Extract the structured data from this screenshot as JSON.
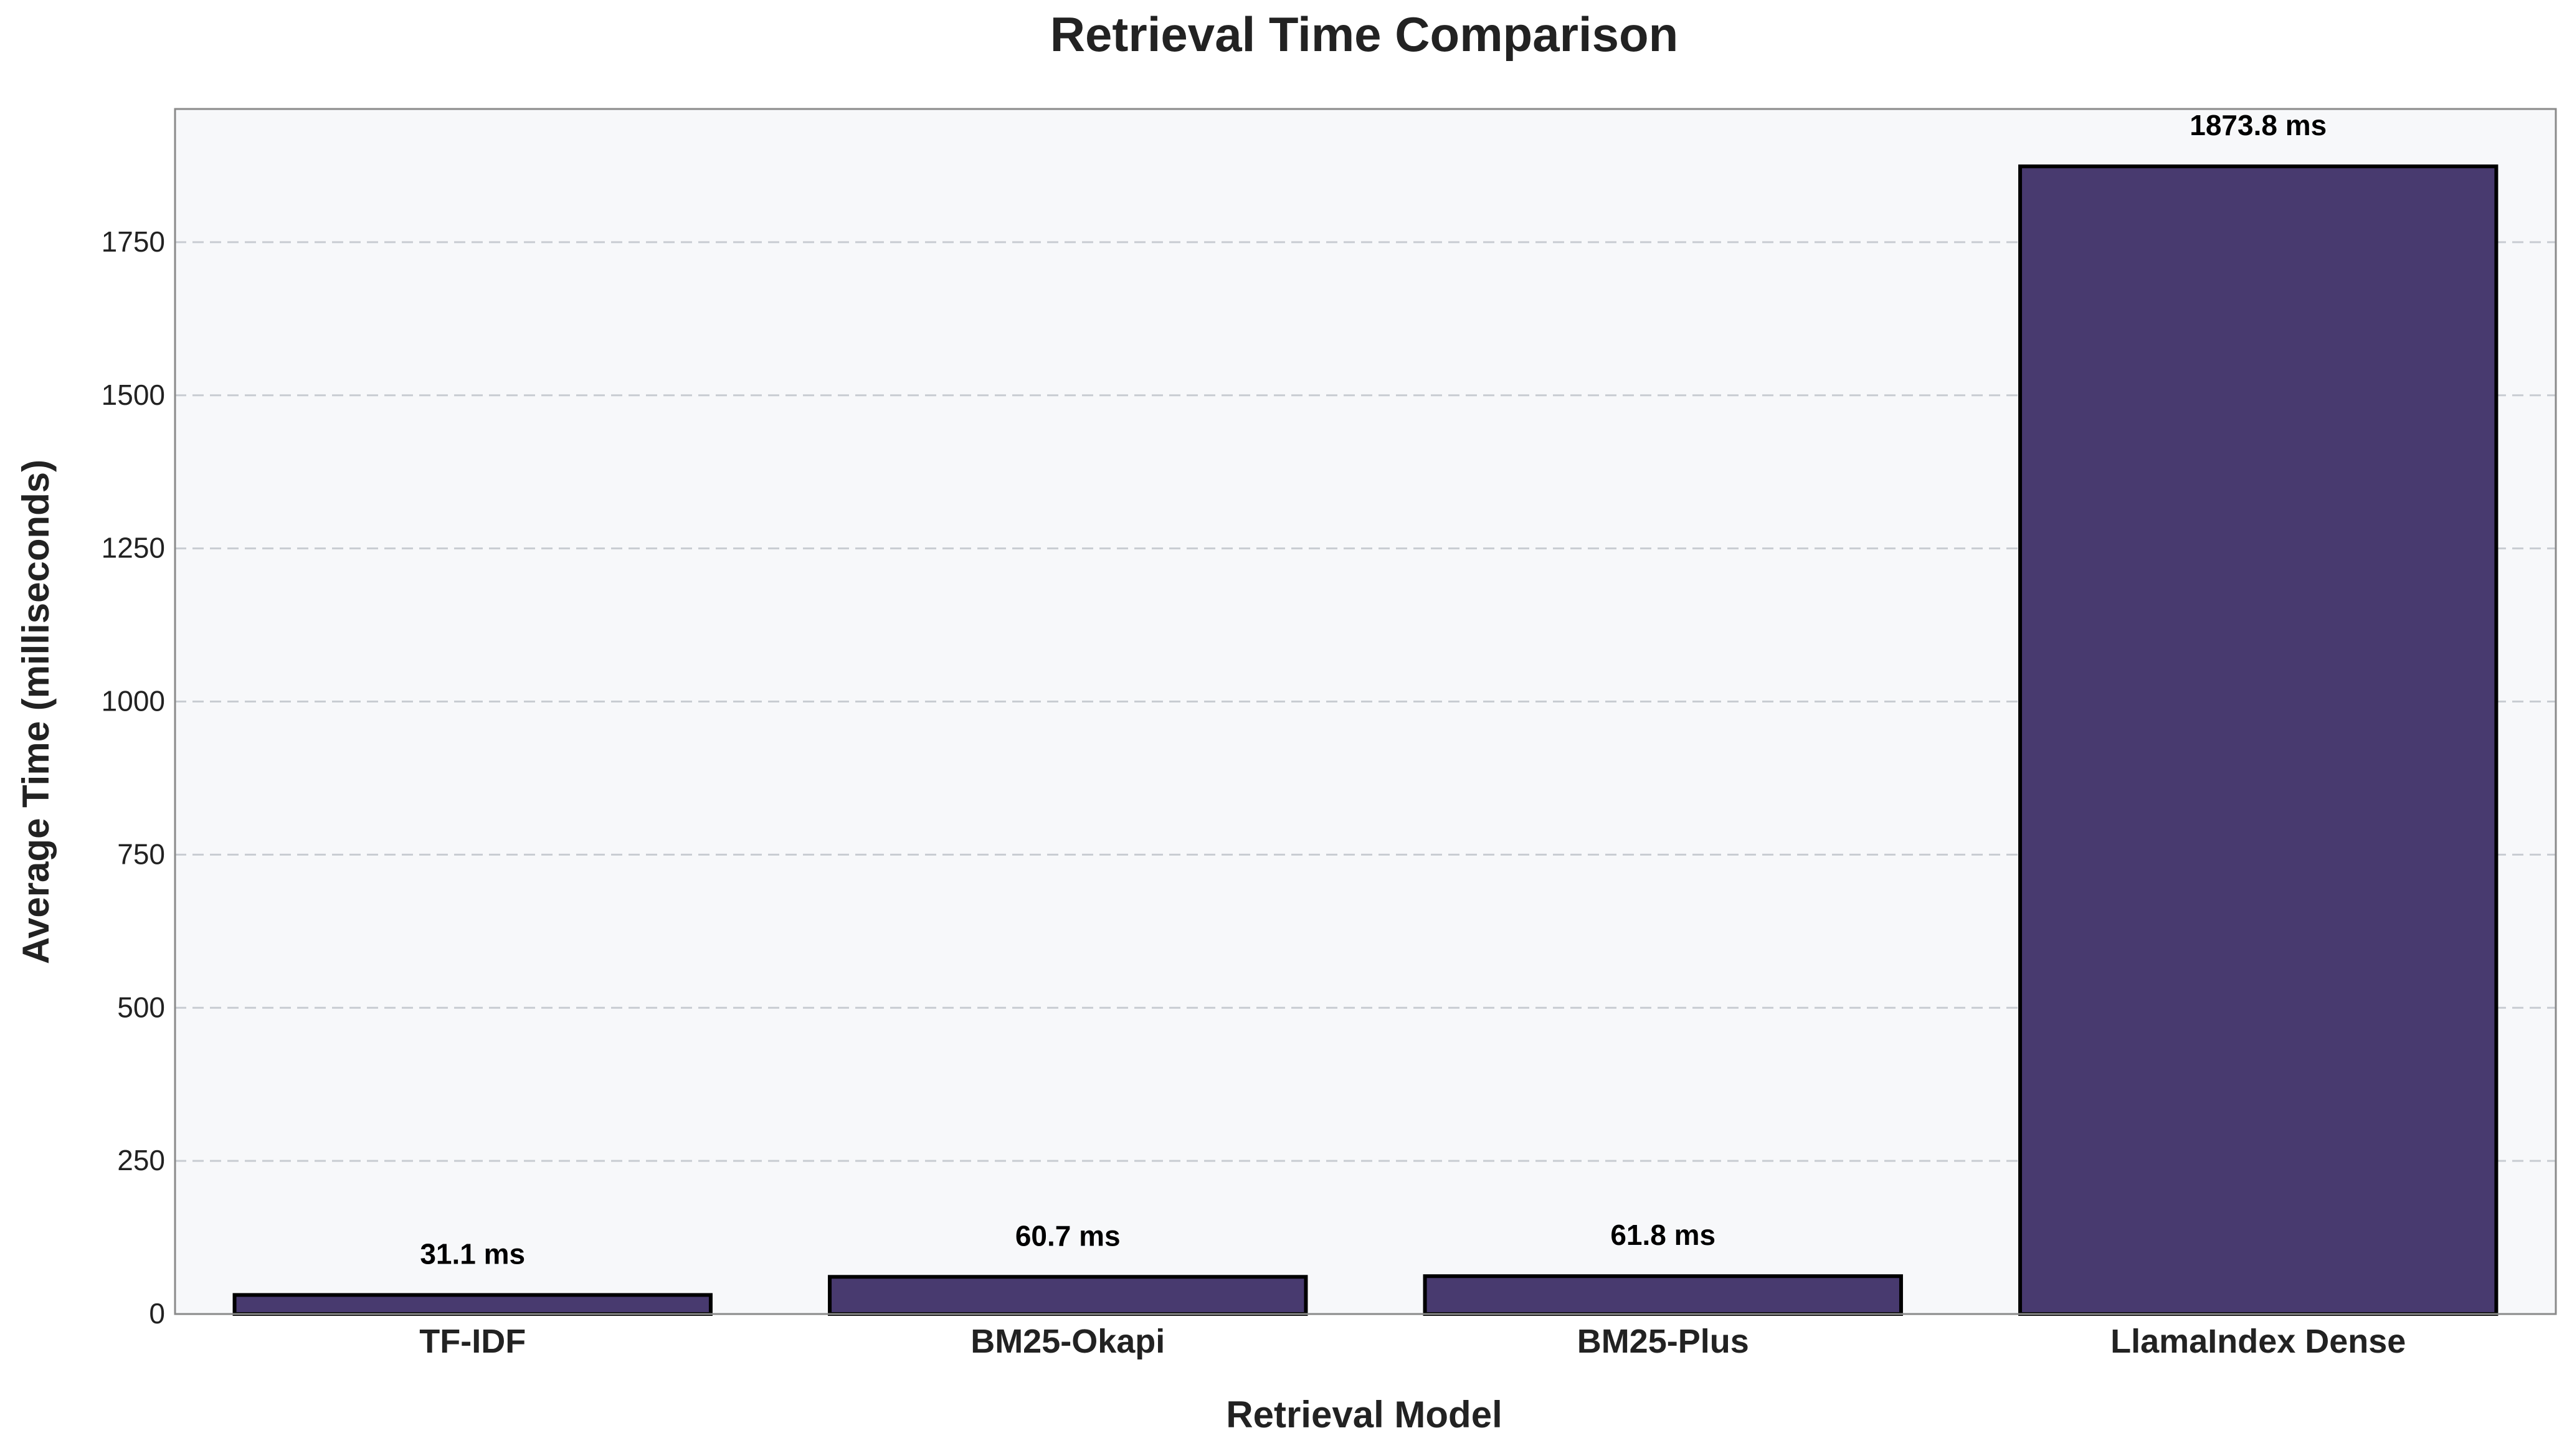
{
  "chart_data": {
    "type": "bar",
    "title": "Retrieval Time Comparison",
    "xlabel": "Retrieval Model",
    "ylabel": "Average Time (milliseconds)",
    "categories": [
      "TF-IDF",
      "BM25-Okapi",
      "BM25-Plus",
      "LlamaIndex Dense"
    ],
    "values": [
      31.1,
      60.7,
      61.8,
      1873.8
    ],
    "value_labels": [
      "31.1 ms",
      "60.7 ms",
      "61.8 ms",
      "1873.8 ms"
    ],
    "ylim": [
      0,
      1967.5
    ],
    "yticks": [
      0,
      250,
      500,
      750,
      1000,
      1250,
      1500,
      1750
    ],
    "grid": "y-dashed",
    "legend": "none",
    "colors": {
      "bar": "#483a6f",
      "bar_edge": "#000000",
      "plot_bg": "#f7f8fa",
      "grid": "#c8ccd2",
      "text": "#222222"
    }
  }
}
